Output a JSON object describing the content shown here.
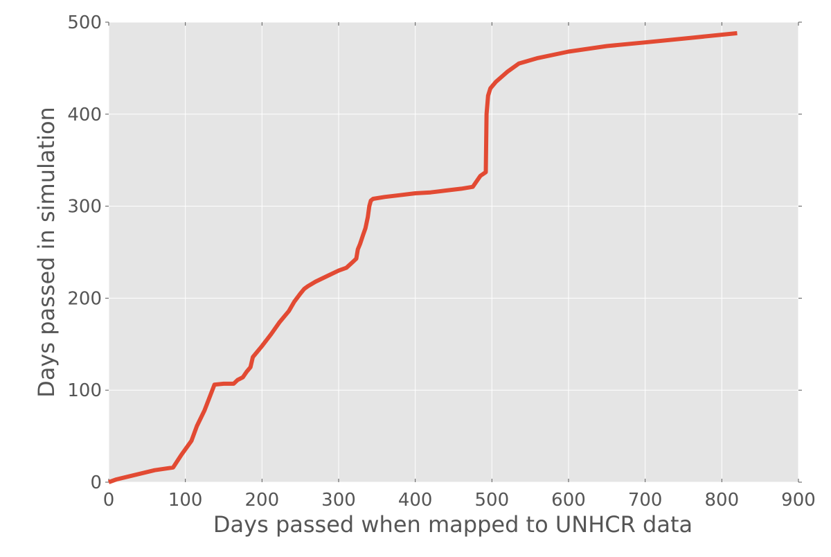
{
  "chart_data": {
    "type": "line",
    "title": "",
    "xlabel": "Days passed when mapped to UNHCR data",
    "ylabel": "Days passed in simulation",
    "xlim": [
      0,
      900
    ],
    "ylim": [
      0,
      500
    ],
    "xticks": [
      "0",
      "100",
      "200",
      "300",
      "400",
      "500",
      "600",
      "700",
      "800",
      "900"
    ],
    "yticks": [
      "0",
      "100",
      "200",
      "300",
      "400",
      "500"
    ],
    "grid": true,
    "legend": "none",
    "series": [
      {
        "color": "#e24a33",
        "x": [
          0,
          10,
          15,
          30,
          45,
          60,
          84,
          95,
          108,
          115,
          125,
          138,
          150,
          163,
          168,
          175,
          180,
          185,
          188,
          200,
          212,
          223,
          235,
          242,
          250,
          255,
          260,
          270,
          285,
          300,
          310,
          318,
          323,
          325,
          328,
          332,
          335,
          338,
          340,
          342,
          345,
          360,
          380,
          400,
          420,
          440,
          460,
          475,
          485,
          492,
          493,
          495,
          498,
          505,
          520,
          535,
          560,
          600,
          650,
          700,
          760,
          820
        ],
        "y": [
          0,
          3,
          4,
          7,
          10,
          13,
          16,
          30,
          45,
          61,
          78,
          106,
          107,
          107,
          111,
          114,
          120,
          125,
          136,
          148,
          161,
          174,
          186,
          196,
          205,
          210,
          213,
          218,
          224,
          230,
          233,
          239,
          243,
          253,
          259,
          269,
          276,
          288,
          300,
          306,
          308,
          310,
          312,
          314,
          315,
          317,
          319,
          321,
          333,
          337,
          400,
          420,
          428,
          435,
          446,
          455,
          461,
          468,
          474,
          478,
          483,
          488
        ]
      }
    ]
  }
}
